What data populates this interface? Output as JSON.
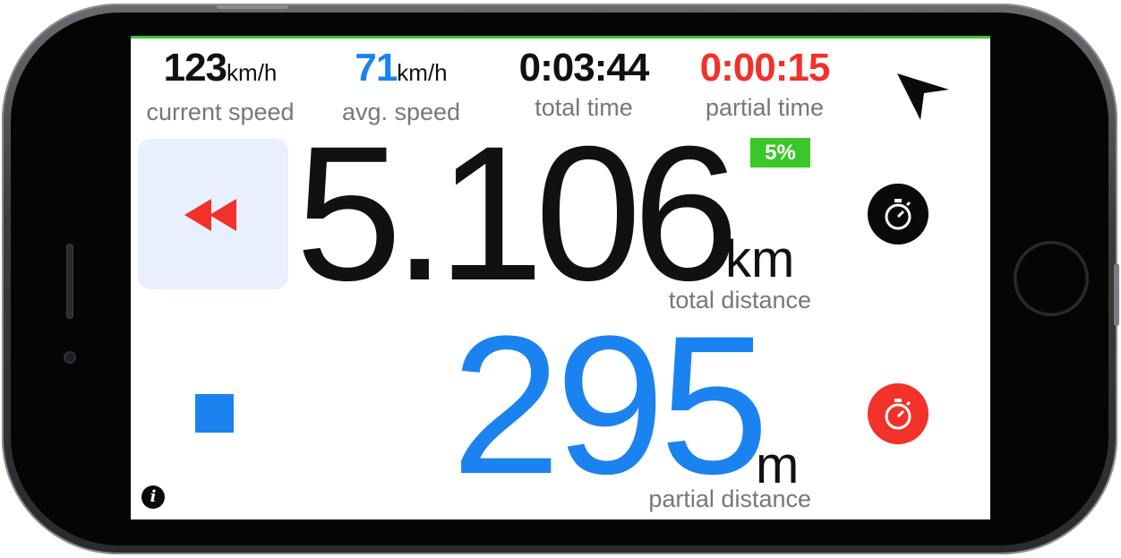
{
  "stats": {
    "current_speed": {
      "value": "123",
      "unit": "km/h",
      "label": "current speed",
      "color": "#111111"
    },
    "avg_speed": {
      "value": "71",
      "unit": "km/h",
      "label": "avg. speed",
      "color": "#1a83f0"
    },
    "total_time": {
      "value": "0:03:44",
      "label": "total time",
      "color": "#111111"
    },
    "partial_time": {
      "value": "0:00:15",
      "label": "partial time",
      "color": "#f0322a"
    }
  },
  "total_distance": {
    "value": "5.106",
    "unit": "km",
    "label": "total distance"
  },
  "partial_distance": {
    "value": "295",
    "unit": "m",
    "label": "partial distance"
  },
  "progress_badge": "5%",
  "icons": {
    "navigation": "navigation-arrow-icon",
    "rewind": "rewind-icon",
    "stopwatch": "stopwatch-icon",
    "stop": "stop-icon",
    "info": "info-icon"
  },
  "colors": {
    "accent_blue": "#1a83f0",
    "accent_red": "#f0322a",
    "accent_green": "#3cc62a",
    "rewind_bg": "#e7f0fc"
  }
}
